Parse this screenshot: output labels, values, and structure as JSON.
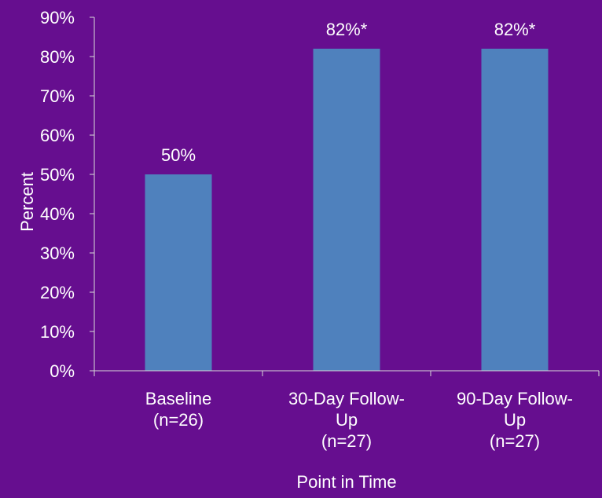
{
  "chart_data": {
    "type": "bar",
    "categories": [
      [
        "Baseline",
        "(n=26)"
      ],
      [
        "30-Day Follow-",
        "Up",
        "(n=27)"
      ],
      [
        "90-Day Follow-",
        "Up",
        "(n=27)"
      ]
    ],
    "values": [
      50,
      82,
      82
    ],
    "data_labels": [
      "50%",
      "82%*",
      "82%*"
    ],
    "title": "",
    "xlabel": "Point in Time",
    "ylabel": "Percent",
    "ylim": [
      0,
      90
    ],
    "yticks": [
      {
        "value": 0,
        "label": "0%"
      },
      {
        "value": 10,
        "label": "10%"
      },
      {
        "value": 20,
        "label": "20%"
      },
      {
        "value": 30,
        "label": "30%"
      },
      {
        "value": 40,
        "label": "40%"
      },
      {
        "value": 50,
        "label": "50%"
      },
      {
        "value": 60,
        "label": "60%"
      },
      {
        "value": 70,
        "label": "70%"
      },
      {
        "value": 80,
        "label": "80%"
      },
      {
        "value": 90,
        "label": "90%"
      }
    ],
    "grid": false,
    "legend": "none",
    "colors": {
      "background": "#660e8f",
      "bar": "#4f81bd",
      "axis": "#d9d9d9",
      "text": "#ffffff"
    }
  }
}
